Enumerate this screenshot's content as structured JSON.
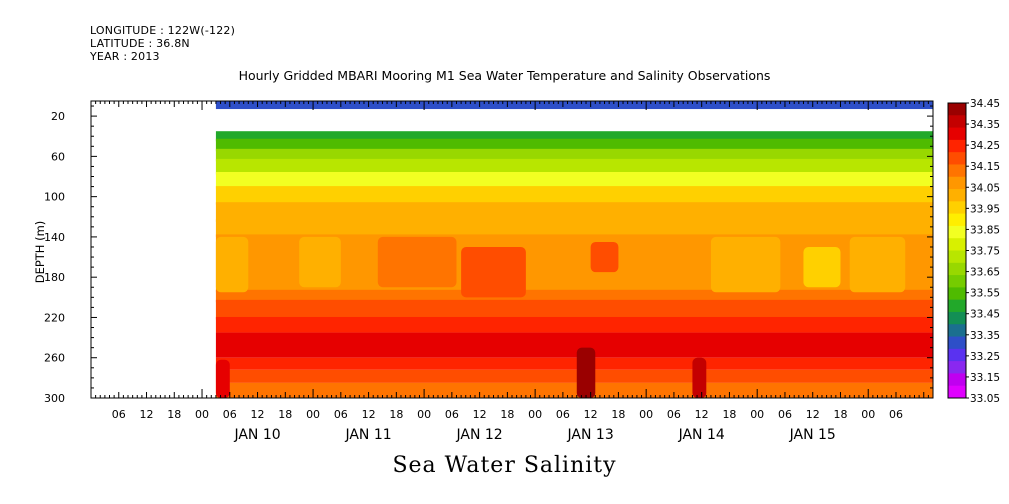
{
  "header": {
    "longitude": "LONGITUDE : 122W(-122)",
    "latitude": "LATITUDE : 36.8N",
    "year": "YEAR : 2013"
  },
  "footer_title": "Sea Water Salinity",
  "chart_data": {
    "type": "heatmap",
    "title": "Hourly Gridded MBARI Mooring M1 Sea Water Temperature and Salinity Observations",
    "xlabel": "",
    "ylabel": "DEPTH (m)",
    "y_ticks": [
      20,
      60,
      100,
      140,
      180,
      220,
      260,
      300
    ],
    "y_range": [
      5,
      300
    ],
    "y_inverted": true,
    "x_range_hours_since_jan9_00": [
      -24,
      158
    ],
    "x_hour_tick_labels": [
      "00",
      "06",
      "12",
      "18"
    ],
    "day_labels": [
      "JAN 10",
      "JAN 11",
      "JAN 12",
      "JAN 13",
      "JAN 14",
      "JAN 15"
    ],
    "colorbar": {
      "labels": [
        "34.45",
        "34.35",
        "34.25",
        "34.15",
        "34.05",
        "33.95",
        "33.85",
        "33.75",
        "33.65",
        "33.55",
        "33.45",
        "33.35",
        "33.25",
        "33.15",
        "33.05"
      ],
      "colors": [
        "#9a0000",
        "#c40000",
        "#e60000",
        "#ff2400",
        "#ff4d00",
        "#ff7400",
        "#ff9700",
        "#ffb000",
        "#ffd000",
        "#ffee00",
        "#f2ff22",
        "#d8f000",
        "#b8e600",
        "#98d800",
        "#76cc00",
        "#4fbb00",
        "#22a82a",
        "#138f55",
        "#1b6f8f",
        "#2e4fc8",
        "#5a32f0",
        "#8a28f0",
        "#c000f0",
        "#e000ff"
      ]
    },
    "data_start_hour": 3,
    "depth_bands": [
      {
        "depth_range": [
          5,
          13
        ],
        "value": 33.3
      },
      {
        "depth_range": [
          13,
          35
        ],
        "value": null
      },
      {
        "depth_range": [
          35,
          45
        ],
        "value": 33.45
      },
      {
        "depth_range": [
          45,
          55
        ],
        "value": 33.55
      },
      {
        "depth_range": [
          55,
          65
        ],
        "value": 33.65
      },
      {
        "depth_range": [
          65,
          78
        ],
        "value": 33.75
      },
      {
        "depth_range": [
          78,
          92
        ],
        "value": 33.85
      },
      {
        "depth_range": [
          92,
          108
        ],
        "value": 33.95
      },
      {
        "depth_range": [
          108,
          125
        ],
        "value": 34.0
      },
      {
        "depth_range": [
          125,
          140
        ],
        "value": 34.05
      },
      {
        "depth_range": [
          140,
          195
        ],
        "value": 34.1
      },
      {
        "depth_range": [
          195,
          205
        ],
        "value": 34.15
      },
      {
        "depth_range": [
          205,
          222
        ],
        "value": 34.2
      },
      {
        "depth_range": [
          222,
          235
        ],
        "value": 34.25
      },
      {
        "depth_range": [
          235,
          260
        ],
        "value": 34.3
      },
      {
        "depth_range": [
          260,
          272
        ],
        "value": 34.25
      },
      {
        "depth_range": [
          272,
          285
        ],
        "value": 34.2
      },
      {
        "depth_range": [
          285,
          300
        ],
        "value": 34.15
      }
    ],
    "features": [
      {
        "hour_range": [
          3,
          10
        ],
        "depth_range": [
          140,
          195
        ],
        "value": 34.0
      },
      {
        "hour_range": [
          21,
          30
        ],
        "depth_range": [
          140,
          190
        ],
        "value": 34.0
      },
      {
        "hour_range": [
          38,
          55
        ],
        "depth_range": [
          140,
          190
        ],
        "value": 34.15
      },
      {
        "hour_range": [
          56,
          70
        ],
        "depth_range": [
          150,
          200
        ],
        "value": 34.2
      },
      {
        "hour_range": [
          84,
          90
        ],
        "depth_range": [
          145,
          175
        ],
        "value": 34.2
      },
      {
        "hour_range": [
          110,
          125
        ],
        "depth_range": [
          140,
          195
        ],
        "value": 34.0
      },
      {
        "hour_range": [
          130,
          138
        ],
        "depth_range": [
          150,
          190
        ],
        "value": 33.95
      },
      {
        "hour_range": [
          140,
          152
        ],
        "depth_range": [
          140,
          195
        ],
        "value": 34.0
      },
      {
        "hour_range": [
          3,
          6
        ],
        "depth_range": [
          262,
          300
        ],
        "value": 34.35
      },
      {
        "hour_range": [
          81,
          85
        ],
        "depth_range": [
          250,
          300
        ],
        "value": 34.45
      },
      {
        "hour_range": [
          106,
          109
        ],
        "depth_range": [
          260,
          300
        ],
        "value": 34.4
      }
    ]
  }
}
